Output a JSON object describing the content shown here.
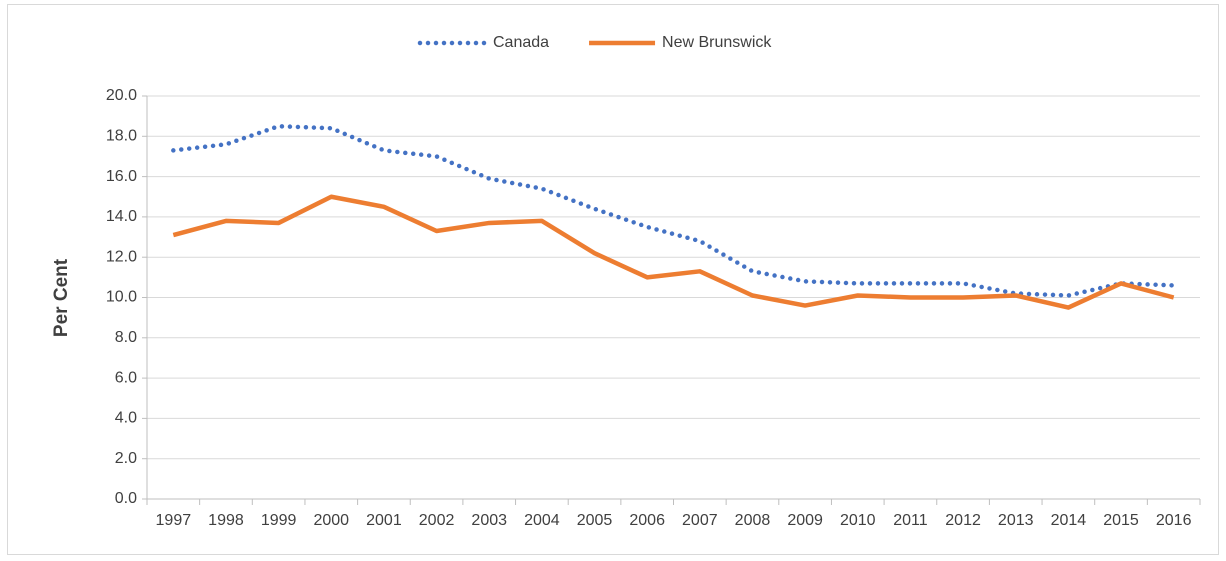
{
  "chart_data": {
    "type": "line",
    "y_label": "Per Cent",
    "categories": [
      "1997",
      "1998",
      "1999",
      "2000",
      "2001",
      "2002",
      "2003",
      "2004",
      "2005",
      "2006",
      "2007",
      "2008",
      "2009",
      "2010",
      "2011",
      "2012",
      "2013",
      "2014",
      "2015",
      "2016"
    ],
    "series": [
      {
        "name": "Canada",
        "color": "#4472c4",
        "style": "dotted",
        "values": [
          17.3,
          17.6,
          18.5,
          18.4,
          17.3,
          17.0,
          15.9,
          15.4,
          14.4,
          13.5,
          12.8,
          11.3,
          10.8,
          10.7,
          10.7,
          10.7,
          10.2,
          10.1,
          10.7,
          10.6
        ]
      },
      {
        "name": "New Brunswick",
        "color": "#ed7d31",
        "style": "solid",
        "values": [
          13.1,
          13.8,
          13.7,
          15.0,
          14.5,
          13.3,
          13.7,
          13.8,
          12.2,
          11.0,
          11.3,
          10.1,
          9.6,
          10.1,
          10.0,
          10.0,
          10.1,
          9.5,
          10.7,
          10.0
        ]
      }
    ],
    "ylim": [
      0,
      20
    ],
    "yticks": [
      {
        "value": 0,
        "label": "0.0"
      },
      {
        "value": 2,
        "label": "2.0"
      },
      {
        "value": 4,
        "label": "4.0"
      },
      {
        "value": 6,
        "label": "6.0"
      },
      {
        "value": 8,
        "label": "8.0"
      },
      {
        "value": 10,
        "label": "10.0"
      },
      {
        "value": 12,
        "label": "12.0"
      },
      {
        "value": 14,
        "label": "14.0"
      },
      {
        "value": 16,
        "label": "16.0"
      },
      {
        "value": 18,
        "label": "18.0"
      },
      {
        "value": 20,
        "label": "20.0"
      }
    ],
    "grid": true,
    "legend": "top"
  }
}
